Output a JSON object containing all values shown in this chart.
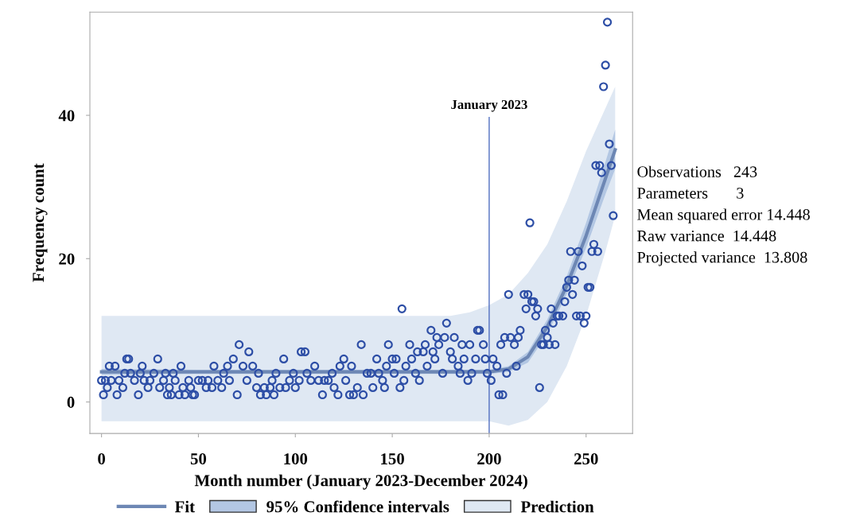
{
  "chart_data": {
    "type": "scatter",
    "xlabel": "Month number (January 2023-December 2024)",
    "ylabel": "Frequency count",
    "xlim": [
      -6,
      274
    ],
    "xticks": [
      0,
      50,
      100,
      150,
      200,
      250
    ],
    "ylim": [
      -4.4,
      54.4
    ],
    "yticks": [
      0,
      20,
      40
    ],
    "grid": false,
    "legend": "bottom",
    "ref_lines": [
      {
        "axis": "x",
        "value": 200,
        "label": "January 2023",
        "color": "#4f6fc0"
      }
    ],
    "annotations": [
      "Observations   243",
      "Parameters       3",
      "Mean squared error 14.448",
      "Raw variance  14.448",
      "Projected variance  13.808"
    ],
    "series": [
      {
        "type": "line",
        "name": "Prediction",
        "color": "#dfe8f3",
        "x": [
          0,
          50,
          100,
          150,
          180,
          190,
          200,
          210,
          220,
          230,
          240,
          250,
          260,
          265
        ],
        "values": [
          null,
          null,
          null,
          null,
          null,
          null,
          null,
          null,
          null,
          null,
          null,
          null,
          null,
          null
        ],
        "lower": [
          -2.7,
          -2.7,
          -2.7,
          -2.7,
          -2.7,
          -2.7,
          -2.7,
          -3.3,
          -2.5,
          0,
          5,
          12,
          21,
          26
        ],
        "upper": [
          12,
          12,
          12,
          12,
          12,
          12.5,
          13.5,
          15,
          18,
          22,
          28,
          35,
          41,
          44
        ]
      },
      {
        "type": "line",
        "name": "95% Confidence intervals",
        "color": "#b3c7e3",
        "x": [
          0,
          50,
          100,
          150,
          180,
          190,
          200,
          210,
          220,
          230,
          240,
          250,
          260,
          265
        ],
        "values": [
          null,
          null,
          null,
          null,
          null,
          null,
          null,
          null,
          null,
          null,
          null,
          null,
          null,
          null
        ],
        "lower": [
          3.8,
          3.9,
          3.9,
          3.9,
          3.9,
          3.9,
          3.9,
          4.2,
          5.5,
          9.5,
          15,
          21.5,
          29,
          32.5
        ],
        "upper": [
          4.6,
          4.5,
          4.5,
          4.5,
          4.5,
          4.5,
          4.5,
          5,
          7,
          11.5,
          17.5,
          25,
          33.5,
          38
        ]
      },
      {
        "type": "line",
        "marker": "none",
        "name": "Fit",
        "color": "#6d87b4",
        "x": [
          0,
          50,
          100,
          150,
          180,
          190,
          200,
          210,
          220,
          230,
          240,
          250,
          260,
          265
        ],
        "values": [
          4.2,
          4.2,
          4.2,
          4.2,
          4.2,
          4.2,
          4.2,
          4.6,
          6.3,
          10.5,
          16.2,
          23.2,
          31.2,
          35.2
        ]
      },
      {
        "marker": "circle",
        "color": "#2d4ea6",
        "x": [
          0,
          1,
          2,
          3,
          4,
          5,
          7,
          8,
          9,
          11,
          12,
          13,
          14,
          15,
          17,
          19,
          20,
          21,
          22,
          24,
          25,
          27,
          29,
          30,
          32,
          33,
          34,
          35,
          36,
          37,
          38,
          40,
          41,
          42,
          43,
          45,
          46,
          47,
          48,
          50,
          52,
          54,
          55,
          57,
          58,
          60,
          62,
          63,
          65,
          66,
          68,
          70,
          71,
          73,
          75,
          76,
          78,
          80,
          81,
          82,
          84,
          85,
          87,
          88,
          89,
          90,
          92,
          94,
          95,
          97,
          99,
          100,
          102,
          103,
          105,
          106,
          108,
          110,
          112,
          114,
          115,
          117,
          119,
          120,
          122,
          123,
          125,
          126,
          128,
          129,
          130,
          132,
          134,
          135,
          137,
          139,
          140,
          142,
          143,
          145,
          146,
          147,
          148,
          150,
          151,
          152,
          154,
          155,
          156,
          157,
          159,
          160,
          162,
          163,
          164,
          166,
          167,
          168,
          170,
          171,
          172,
          173,
          174,
          176,
          177,
          178,
          180,
          181,
          182,
          184,
          185,
          186,
          187,
          189,
          190,
          191,
          193,
          194,
          195,
          197,
          198,
          199,
          201,
          202,
          204,
          205,
          206,
          207,
          208,
          209,
          210,
          211,
          213,
          214,
          215,
          216,
          218,
          219,
          220,
          221,
          222,
          223,
          224,
          225,
          226,
          227,
          228,
          229,
          230,
          231,
          232,
          233,
          234,
          235,
          236,
          238,
          239,
          240,
          241,
          242,
          243,
          244,
          245,
          246,
          247,
          248,
          249,
          250,
          251,
          252,
          253,
          254,
          255,
          256,
          257,
          258,
          259,
          260,
          261,
          262,
          263,
          264
        ],
        "values": [
          3,
          1,
          3,
          2,
          5,
          3,
          5,
          1,
          3,
          2,
          4,
          6,
          6,
          4,
          3,
          1,
          4,
          5,
          3,
          2,
          3,
          4,
          6,
          2,
          3,
          4,
          1,
          2,
          1,
          4,
          3,
          1,
          5,
          2,
          1,
          3,
          2,
          1,
          1,
          3,
          3,
          2,
          3,
          2,
          5,
          3,
          2,
          4,
          5,
          3,
          6,
          1,
          8,
          5,
          3,
          7,
          5,
          2,
          4,
          1,
          2,
          1,
          2,
          3,
          1,
          4,
          2,
          6,
          2,
          3,
          4,
          2,
          3,
          7,
          7,
          4,
          3,
          5,
          3,
          1,
          3,
          3,
          4,
          2,
          1,
          5,
          6,
          3,
          1,
          5,
          1,
          2,
          8,
          1,
          4,
          4,
          2,
          6,
          4,
          3,
          2,
          5,
          8,
          6,
          4,
          6,
          2,
          13,
          3,
          5,
          8,
          6,
          4,
          7,
          3,
          7,
          8,
          5,
          10,
          7,
          6,
          9,
          8,
          4,
          9,
          11,
          7,
          6,
          9,
          5,
          4,
          8,
          6,
          3,
          8,
          4,
          6,
          10,
          10,
          8,
          6,
          4,
          3,
          6,
          5,
          1,
          8,
          1,
          9,
          4,
          15,
          9,
          8,
          5,
          9,
          10,
          15,
          13,
          15,
          25,
          14,
          14,
          12,
          13,
          2,
          8,
          8,
          10,
          9,
          8,
          13,
          11,
          8,
          12,
          12,
          12,
          14,
          16,
          17,
          21,
          15,
          17,
          12,
          21,
          12,
          19,
          11,
          12,
          16,
          16,
          21,
          22,
          33,
          21,
          33,
          32,
          44,
          47,
          53,
          36,
          33,
          26
        ]
      }
    ]
  }
}
